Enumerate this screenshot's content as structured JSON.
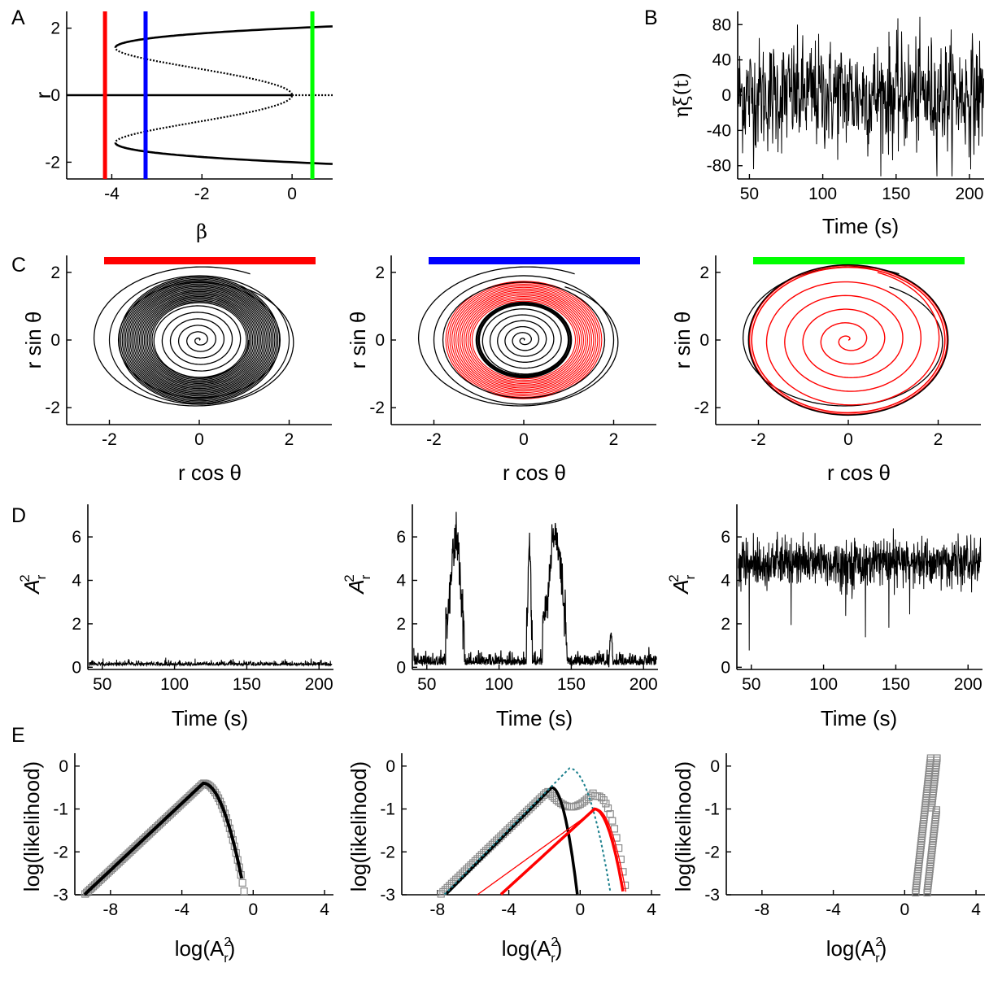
{
  "panel_labels": [
    "A",
    "B",
    "C",
    "D",
    "E"
  ],
  "colors": {
    "red": "#ff0000",
    "blue": "#0000ff",
    "green": "#00ff00",
    "black": "#000000",
    "teal": "#1a7f8c",
    "gray": "#8a8a8a"
  },
  "chart_data": [
    {
      "id": "A",
      "type": "line",
      "xlabel": "β",
      "ylabel": "r",
      "xlim": [
        -5,
        0.9
      ],
      "ylim": [
        -2.5,
        2.5
      ],
      "xticks": [
        "-4",
        "-2",
        "0"
      ],
      "yticks": [
        "2",
        "0",
        "-2"
      ],
      "vertical_lines": [
        {
          "x": -4.15,
          "color": "red"
        },
        {
          "x": -3.25,
          "color": "blue"
        },
        {
          "x": 0.45,
          "color": "green"
        }
      ],
      "branches": [
        "stable r = 0 for β < 0",
        "unstable r = 0 for β > 0",
        "unstable inner branches",
        "stable outer branches",
        "fold at β ≈ -4, r ≈ ±1.4"
      ]
    },
    {
      "id": "B",
      "type": "line",
      "xlabel": "Time (s)",
      "ylabel": "ηξ(t)",
      "xlim": [
        42,
        210
      ],
      "ylim": [
        -95,
        95
      ],
      "xticks": [
        "50",
        "100",
        "150",
        "200"
      ],
      "yticks": [
        "80",
        "40",
        "0",
        "-40",
        "-80"
      ],
      "description": "dense white-noise trace"
    },
    {
      "id": "C1",
      "type": "line",
      "xlabel": "r cos θ",
      "ylabel": "r sin θ",
      "xlim": [
        -2.95,
        2.95
      ],
      "ylim": [
        -2.5,
        2.5
      ],
      "xticks": [
        "-2",
        "0",
        "2"
      ],
      "yticks": [
        "2",
        "0",
        "-2"
      ],
      "bar_color": "red"
    },
    {
      "id": "C2",
      "type": "line",
      "xlabel": "r cos θ",
      "ylabel": "r sin θ",
      "xlim": [
        -2.95,
        2.95
      ],
      "ylim": [
        -2.5,
        2.5
      ],
      "xticks": [
        "-2",
        "0",
        "2"
      ],
      "yticks": [
        "2",
        "0",
        "-2"
      ],
      "bar_color": "blue"
    },
    {
      "id": "C3",
      "type": "line",
      "xlabel": "r cos θ",
      "ylabel": "r sin θ",
      "xlim": [
        -2.95,
        2.95
      ],
      "ylim": [
        -2.5,
        2.5
      ],
      "xticks": [
        "-2",
        "0",
        "2"
      ],
      "yticks": [
        "2",
        "0",
        "-2"
      ],
      "bar_color": "green"
    },
    {
      "id": "D1",
      "type": "line",
      "xlabel": "Time (s)",
      "ylabel": "A",
      "xlim": [
        40,
        210
      ],
      "ylim": [
        -0.1,
        7.5
      ],
      "xticks": [
        "50",
        "100",
        "150",
        "200"
      ],
      "yticks": [
        "6",
        "4",
        "2",
        "0"
      ],
      "mean_level": 0.1
    },
    {
      "id": "D2",
      "type": "line",
      "xlabel": "Time (s)",
      "ylabel": "A",
      "xlim": [
        40,
        210
      ],
      "ylim": [
        -0.1,
        7.5
      ],
      "xticks": [
        "50",
        "100",
        "150",
        "200"
      ],
      "yticks": [
        "6",
        "4",
        "2",
        "0"
      ],
      "bursts": [
        {
          "start": 63,
          "end": 76,
          "peak": 7.4
        },
        {
          "start": 119,
          "end": 123,
          "peak": 6.8
        },
        {
          "start": 130,
          "end": 147,
          "peak": 7.4
        },
        {
          "start": 176,
          "end": 179,
          "peak": 1.5
        }
      ]
    },
    {
      "id": "D3",
      "type": "line",
      "xlabel": "Time (s)",
      "ylabel": "A",
      "xlim": [
        40,
        210
      ],
      "ylim": [
        -0.1,
        7.5
      ],
      "xticks": [
        "50",
        "100",
        "150",
        "200"
      ],
      "yticks": [
        "6",
        "4",
        "2",
        "0"
      ],
      "mean_level": 4.8
    },
    {
      "id": "E1",
      "type": "scatter",
      "xlabel": "log(A",
      "ylabel": "log(likelihood)",
      "xlim": [
        -10,
        4.5
      ],
      "ylim": [
        -3,
        0.3
      ],
      "xticks": [
        "-8",
        "-4",
        "0",
        "4"
      ],
      "yticks": [
        "0",
        "-1",
        "-2",
        "-3"
      ],
      "peak": {
        "x": -2.8,
        "y": -0.4
      }
    },
    {
      "id": "E2",
      "type": "scatter",
      "xlabel": "log(A",
      "ylabel": "log(likelihood)",
      "xlim": [
        -10,
        4.5
      ],
      "ylim": [
        -3,
        0.3
      ],
      "xticks": [
        "-8",
        "-4",
        "0",
        "4"
      ],
      "yticks": [
        "0",
        "-1",
        "-2",
        "-3"
      ],
      "curves": [
        {
          "color": "black",
          "peak_x": -1.6,
          "peak_y": -0.5
        },
        {
          "color": "teal",
          "style": "dotted",
          "peak_x": -0.6,
          "peak_y": -0.05
        },
        {
          "color": "red",
          "peak_x": 0.8,
          "peak_y": -1.0
        }
      ]
    },
    {
      "id": "E3",
      "type": "scatter",
      "xlabel": "log(A",
      "ylabel": "log(likelihood)",
      "xlim": [
        -10,
        4.5
      ],
      "ylim": [
        -3,
        0.3
      ],
      "xticks": [
        "-8",
        "-4",
        "0",
        "4"
      ],
      "yticks": [
        "0",
        "-1",
        "-2",
        "-3"
      ],
      "x_range": [
        0.6,
        2.0
      ]
    }
  ]
}
